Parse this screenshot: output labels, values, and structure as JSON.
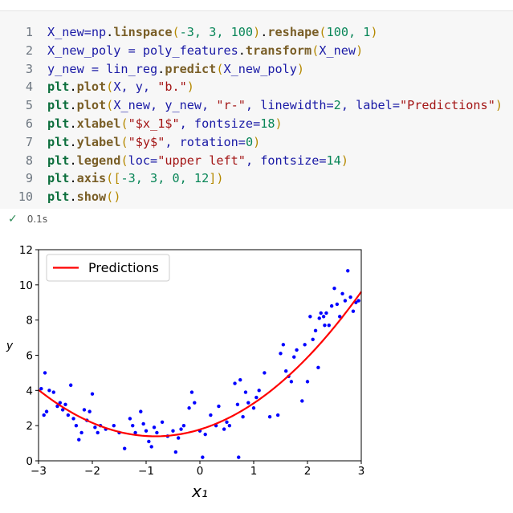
{
  "cell": {
    "lines": [
      {
        "n": "1",
        "tokens": [
          {
            "t": "X_new=",
            "c": "id"
          },
          {
            "t": "np",
            "c": "id"
          },
          {
            "t": ".",
            "c": "op"
          },
          {
            "t": "linspace",
            "c": "fn"
          },
          {
            "t": "(",
            "c": "paren"
          },
          {
            "t": "-3, 3, 100",
            "c": "num"
          },
          {
            "t": ")",
            "c": "paren"
          },
          {
            "t": ".",
            "c": "op"
          },
          {
            "t": "reshape",
            "c": "fn"
          },
          {
            "t": "(",
            "c": "paren"
          },
          {
            "t": "100, 1",
            "c": "num"
          },
          {
            "t": ")",
            "c": "paren"
          }
        ]
      },
      {
        "n": "2",
        "tokens": [
          {
            "t": "X_new_poly = poly_features",
            "c": "id"
          },
          {
            "t": ".",
            "c": "op"
          },
          {
            "t": "transform",
            "c": "fn"
          },
          {
            "t": "(",
            "c": "paren"
          },
          {
            "t": "X_new",
            "c": "id"
          },
          {
            "t": ")",
            "c": "paren"
          }
        ]
      },
      {
        "n": "3",
        "tokens": [
          {
            "t": "y_new = lin_reg",
            "c": "id"
          },
          {
            "t": ".",
            "c": "op"
          },
          {
            "t": "predict",
            "c": "fn"
          },
          {
            "t": "(",
            "c": "paren"
          },
          {
            "t": "X_new_poly",
            "c": "id"
          },
          {
            "t": ")",
            "c": "paren"
          }
        ]
      },
      {
        "n": "4",
        "tokens": [
          {
            "t": "plt",
            "c": "kw"
          },
          {
            "t": ".",
            "c": "op"
          },
          {
            "t": "plot",
            "c": "fn"
          },
          {
            "t": "(",
            "c": "paren"
          },
          {
            "t": "X, y, ",
            "c": "id"
          },
          {
            "t": "\"b.\"",
            "c": "str"
          },
          {
            "t": ")",
            "c": "paren"
          }
        ]
      },
      {
        "n": "5",
        "tokens": [
          {
            "t": "plt",
            "c": "kw"
          },
          {
            "t": ".",
            "c": "op"
          },
          {
            "t": "plot",
            "c": "fn"
          },
          {
            "t": "(",
            "c": "paren"
          },
          {
            "t": "X_new, y_new, ",
            "c": "id"
          },
          {
            "t": "\"r-\"",
            "c": "str"
          },
          {
            "t": ", linewidth=",
            "c": "id"
          },
          {
            "t": "2",
            "c": "num"
          },
          {
            "t": ", label=",
            "c": "id"
          },
          {
            "t": "\"Predictions\"",
            "c": "str"
          },
          {
            "t": ")",
            "c": "paren"
          }
        ]
      },
      {
        "n": "6",
        "tokens": [
          {
            "t": "plt",
            "c": "kw"
          },
          {
            "t": ".",
            "c": "op"
          },
          {
            "t": "xlabel",
            "c": "fn"
          },
          {
            "t": "(",
            "c": "paren"
          },
          {
            "t": "\"$x_1$\"",
            "c": "str"
          },
          {
            "t": ", fontsize=",
            "c": "id"
          },
          {
            "t": "18",
            "c": "num"
          },
          {
            "t": ")",
            "c": "paren"
          }
        ]
      },
      {
        "n": "7",
        "tokens": [
          {
            "t": "plt",
            "c": "kw"
          },
          {
            "t": ".",
            "c": "op"
          },
          {
            "t": "ylabel",
            "c": "fn"
          },
          {
            "t": "(",
            "c": "paren"
          },
          {
            "t": "\"$y$\"",
            "c": "str"
          },
          {
            "t": ", rotation=",
            "c": "id"
          },
          {
            "t": "0",
            "c": "num"
          },
          {
            "t": ")",
            "c": "paren"
          }
        ]
      },
      {
        "n": "8",
        "tokens": [
          {
            "t": "plt",
            "c": "kw"
          },
          {
            "t": ".",
            "c": "op"
          },
          {
            "t": "legend",
            "c": "fn"
          },
          {
            "t": "(",
            "c": "paren"
          },
          {
            "t": "loc=",
            "c": "id"
          },
          {
            "t": "\"upper left\"",
            "c": "str"
          },
          {
            "t": ", fontsize=",
            "c": "id"
          },
          {
            "t": "14",
            "c": "num"
          },
          {
            "t": ")",
            "c": "paren"
          }
        ]
      },
      {
        "n": "9",
        "tokens": [
          {
            "t": "plt",
            "c": "kw"
          },
          {
            "t": ".",
            "c": "op"
          },
          {
            "t": "axis",
            "c": "fn"
          },
          {
            "t": "(",
            "c": "paren"
          },
          {
            "t": "[",
            "c": "paren"
          },
          {
            "t": "-3, 3, 0, 12",
            "c": "num"
          },
          {
            "t": "]",
            "c": "paren"
          },
          {
            "t": ")",
            "c": "paren"
          }
        ]
      },
      {
        "n": "10",
        "tokens": [
          {
            "t": "plt",
            "c": "kw"
          },
          {
            "t": ".",
            "c": "op"
          },
          {
            "t": "show",
            "c": "fn"
          },
          {
            "t": "()",
            "c": "paren"
          }
        ]
      }
    ]
  },
  "status": {
    "check": "✓",
    "time": "0.1s"
  },
  "colors": {
    "points": "#0000ff",
    "line": "#ff0000"
  },
  "chart_data": {
    "type": "scatter",
    "xlim": [
      -3,
      3
    ],
    "ylim": [
      0,
      12
    ],
    "xlabel": "x₁",
    "ylabel": "y",
    "xticks": [
      "−3",
      "−2",
      "−1",
      "0",
      "1",
      "2",
      "3"
    ],
    "yticks": [
      "0",
      "2",
      "4",
      "6",
      "8",
      "10",
      "12"
    ],
    "legend": {
      "placement": "upper left",
      "entries": [
        "Predictions"
      ]
    },
    "grid": false,
    "series": [
      {
        "name": "Predictions",
        "kind": "line",
        "model": "quadratic",
        "coef": {
          "a": 0.56,
          "b": 0.93,
          "c": 1.78
        }
      },
      {
        "kind": "points",
        "points": [
          [
            -2.95,
            4.1
          ],
          [
            -2.9,
            2.6
          ],
          [
            -2.88,
            5.0
          ],
          [
            -2.85,
            2.8
          ],
          [
            -2.8,
            4.0
          ],
          [
            -2.72,
            3.9
          ],
          [
            -2.65,
            3.1
          ],
          [
            -2.6,
            3.3
          ],
          [
            -2.55,
            2.9
          ],
          [
            -2.5,
            3.2
          ],
          [
            -2.45,
            2.6
          ],
          [
            -2.4,
            4.3
          ],
          [
            -2.35,
            2.4
          ],
          [
            -2.3,
            2.0
          ],
          [
            -2.25,
            1.2
          ],
          [
            -2.2,
            1.6
          ],
          [
            -2.15,
            2.9
          ],
          [
            -2.1,
            2.3
          ],
          [
            -2.05,
            2.8
          ],
          [
            -2.0,
            3.8
          ],
          [
            -1.95,
            1.9
          ],
          [
            -1.9,
            1.6
          ],
          [
            -1.85,
            2.0
          ],
          [
            -1.75,
            1.8
          ],
          [
            -1.6,
            2.0
          ],
          [
            -1.5,
            1.6
          ],
          [
            -1.4,
            0.7
          ],
          [
            -1.3,
            2.4
          ],
          [
            -1.25,
            2.0
          ],
          [
            -1.2,
            1.6
          ],
          [
            -1.1,
            2.8
          ],
          [
            -1.05,
            2.1
          ],
          [
            -1.0,
            1.7
          ],
          [
            -0.95,
            1.1
          ],
          [
            -0.9,
            0.8
          ],
          [
            -0.85,
            1.9
          ],
          [
            -0.8,
            1.6
          ],
          [
            -0.7,
            2.2
          ],
          [
            -0.6,
            1.4
          ],
          [
            -0.5,
            1.7
          ],
          [
            -0.45,
            0.5
          ],
          [
            -0.4,
            1.3
          ],
          [
            -0.35,
            1.8
          ],
          [
            -0.3,
            2.0
          ],
          [
            -0.2,
            3.0
          ],
          [
            -0.15,
            3.9
          ],
          [
            -0.1,
            3.3
          ],
          [
            0.0,
            1.7
          ],
          [
            0.05,
            0.2
          ],
          [
            0.1,
            1.5
          ],
          [
            0.2,
            2.6
          ],
          [
            0.3,
            2.0
          ],
          [
            0.35,
            3.1
          ],
          [
            0.45,
            1.8
          ],
          [
            0.5,
            2.2
          ],
          [
            0.55,
            2.0
          ],
          [
            0.65,
            4.4
          ],
          [
            0.7,
            3.2
          ],
          [
            0.75,
            4.6
          ],
          [
            0.8,
            2.5
          ],
          [
            0.85,
            3.9
          ],
          [
            0.9,
            3.3
          ],
          [
            1.0,
            3.0
          ],
          [
            1.05,
            3.6
          ],
          [
            1.1,
            4.0
          ],
          [
            1.2,
            5.0
          ],
          [
            1.3,
            2.5
          ],
          [
            1.45,
            2.6
          ],
          [
            1.5,
            6.1
          ],
          [
            1.55,
            6.6
          ],
          [
            1.6,
            5.1
          ],
          [
            1.65,
            4.8
          ],
          [
            1.7,
            4.5
          ],
          [
            1.75,
            5.9
          ],
          [
            1.8,
            6.3
          ],
          [
            1.9,
            3.4
          ],
          [
            1.95,
            6.6
          ],
          [
            2.0,
            4.5
          ],
          [
            2.05,
            8.2
          ],
          [
            2.1,
            6.9
          ],
          [
            2.15,
            7.4
          ],
          [
            2.2,
            5.3
          ],
          [
            2.25,
            8.4
          ],
          [
            2.3,
            8.2
          ],
          [
            2.35,
            8.4
          ],
          [
            2.4,
            7.7
          ],
          [
            2.45,
            8.8
          ],
          [
            2.5,
            9.8
          ],
          [
            2.55,
            8.9
          ],
          [
            2.6,
            8.2
          ],
          [
            2.65,
            9.5
          ],
          [
            2.7,
            9.1
          ],
          [
            2.75,
            10.8
          ],
          [
            2.8,
            9.3
          ],
          [
            2.85,
            8.5
          ],
          [
            2.9,
            9.0
          ],
          [
            2.95,
            9.1
          ],
          [
            2.22,
            8.1
          ],
          [
            2.32,
            7.7
          ],
          [
            0.72,
            0.2
          ]
        ]
      }
    ]
  }
}
